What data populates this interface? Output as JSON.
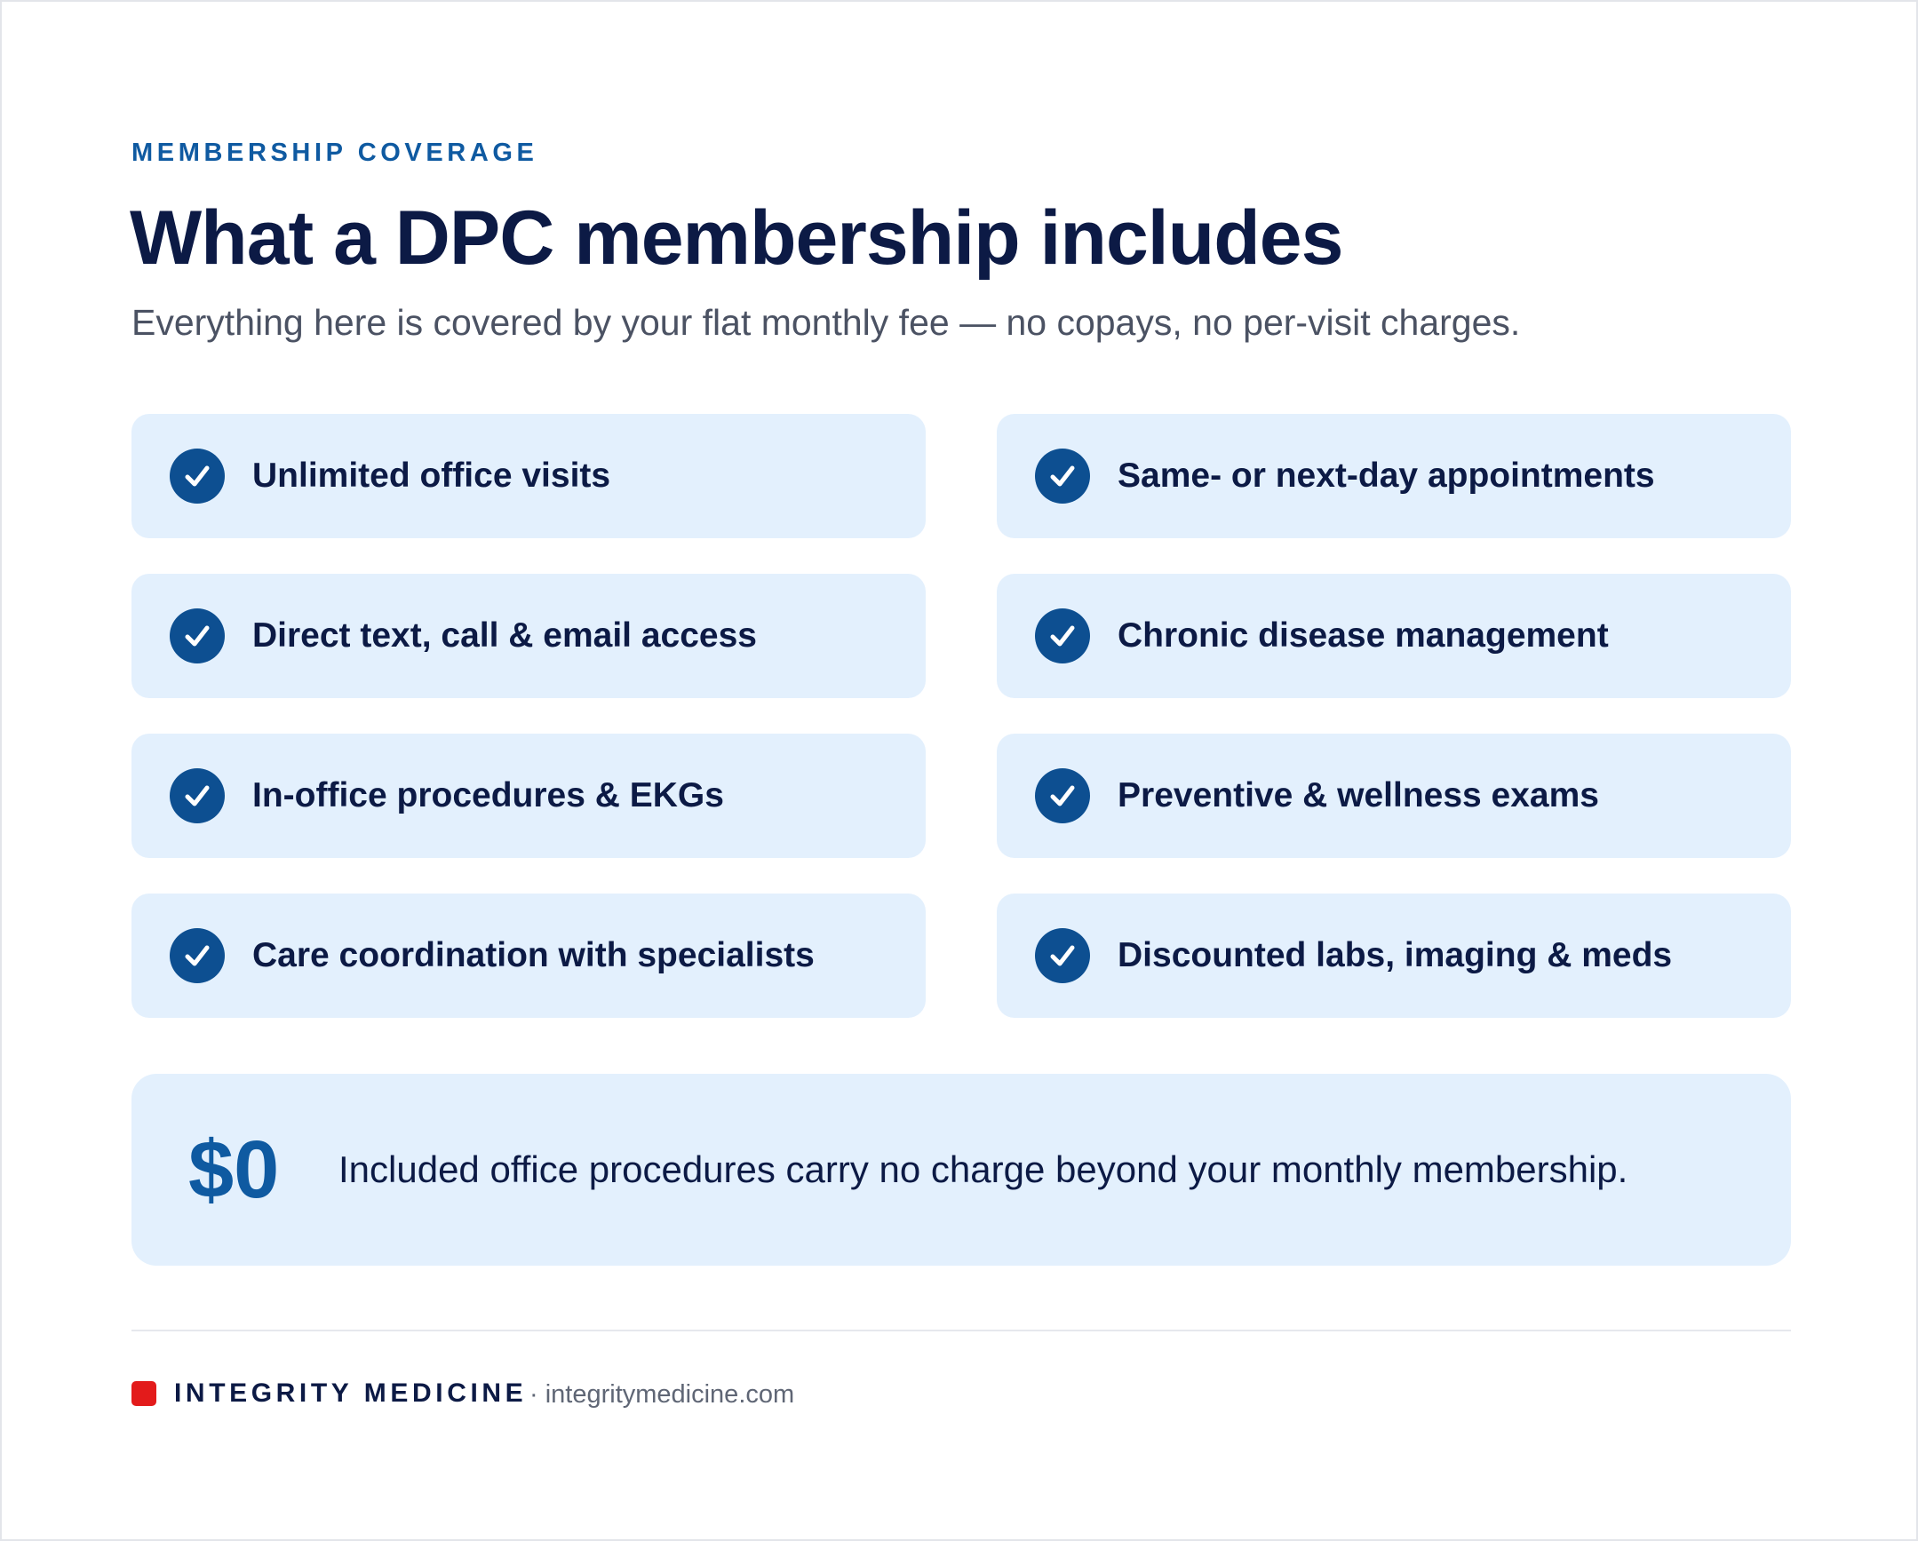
{
  "header": {
    "eyebrow": "MEMBERSHIP COVERAGE",
    "title": "What a DPC membership includes",
    "subtitle": "Everything here is covered by your flat monthly fee — no copays, no per-visit charges."
  },
  "features": {
    "left": [
      "Unlimited office visits",
      "Direct text, call & email access",
      "In-office procedures & EKGs",
      "Care coordination with specialists"
    ],
    "right": [
      "Same- or next-day appointments",
      "Chronic disease management",
      "Preventive & wellness exams",
      "Discounted labs, imaging & meds"
    ],
    "icon": "check-circle-icon"
  },
  "callout": {
    "value": "$0",
    "text": "Included office procedures carry no charge beyond your monthly membership."
  },
  "footer": {
    "brand_name": "INTEGRITY MEDICINE",
    "url": "· integritymedicine.com"
  },
  "colors": {
    "navy": "#0c1a45",
    "accent_blue": "#0f5aa1",
    "check_blue": "#0d4f91",
    "card_background": "#e3f0fd",
    "brand_red": "#e31b1b"
  }
}
